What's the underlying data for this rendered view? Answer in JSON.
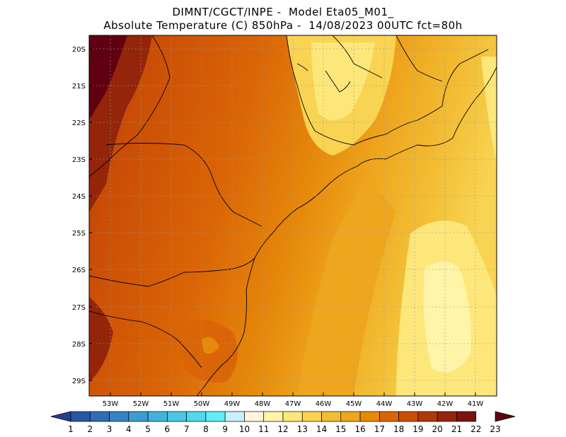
{
  "title": {
    "line1": "DIMNT/CGCT/INPE -  Model Eta05_M01_",
    "line2": "Absolute Temperature (C) 850hPa -  14/08/2023 00UTC fct=80h"
  },
  "map": {
    "lat_labels": [
      "20S",
      "21S",
      "22S",
      "23S",
      "24S",
      "25S",
      "26S",
      "27S",
      "28S",
      "29S"
    ],
    "lon_labels": [
      "53W",
      "52W",
      "51W",
      "50W",
      "49W",
      "48W",
      "47W",
      "46W",
      "45W",
      "44W",
      "43W",
      "42W",
      "41W"
    ]
  },
  "colorbar": {
    "labels": [
      "1",
      "2",
      "3",
      "4",
      "5",
      "6",
      "7",
      "8",
      "9",
      "10",
      "11",
      "12",
      "13",
      "14",
      "15",
      "16",
      "17",
      "18",
      "19",
      "20",
      "21",
      "22",
      "23"
    ],
    "colors": [
      "#243f8f",
      "#2a56a3",
      "#2f6db4",
      "#3584c2",
      "#3b9cd0",
      "#42b2dc",
      "#49c6e4",
      "#50d8ec",
      "#62ecf6",
      "#c8f0f8",
      "#fff6dc",
      "#fff4a8",
      "#fde77a",
      "#f8d452",
      "#f2bd34",
      "#eea61e",
      "#e6890a",
      "#da6506",
      "#c94d06",
      "#b03808",
      "#94250a",
      "#7a140c",
      "#600010"
    ]
  }
}
